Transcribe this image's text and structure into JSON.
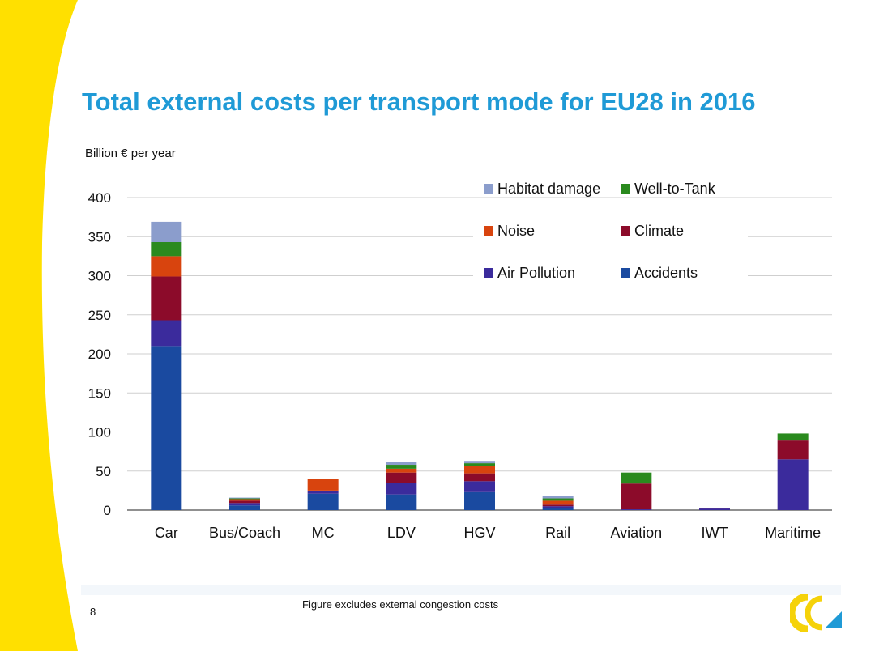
{
  "slide": {
    "title": "Total external costs per transport mode for EU28 in 2016",
    "unit_label": "Billion € per year",
    "footnote": "Figure excludes external congestion costs",
    "page_number": "8"
  },
  "colors": {
    "title": "#1f9ad6",
    "side_band": "#ffe000",
    "footer_line": "#4aa9d8"
  },
  "chart_data": {
    "type": "bar",
    "stacked": true,
    "categories": [
      "Car",
      "Bus/Coach",
      "MC",
      "LDV",
      "HGV",
      "Rail",
      "Aviation",
      "IWT",
      "Maritime"
    ],
    "ylim": [
      0,
      400
    ],
    "yticks": [
      0,
      50,
      100,
      150,
      200,
      250,
      300,
      350,
      400
    ],
    "grid": true,
    "legend_position": "top-right",
    "series": [
      {
        "name": "Accidents",
        "color": "#1a4aa0",
        "values": [
          210,
          6,
          21,
          20,
          23,
          3,
          0,
          0,
          0
        ]
      },
      {
        "name": "Air Pollution",
        "color": "#3b2b9c",
        "values": [
          33,
          3,
          3,
          15,
          14,
          2,
          1,
          2,
          65
        ]
      },
      {
        "name": "Climate",
        "color": "#8c0b2a",
        "values": [
          56,
          3,
          1,
          13,
          10,
          2,
          33,
          1,
          24
        ]
      },
      {
        "name": "Noise",
        "color": "#d8440e",
        "values": [
          26,
          2,
          15,
          5,
          9,
          5,
          0,
          0,
          0
        ]
      },
      {
        "name": "Well-to-Tank",
        "color": "#2a8a1e",
        "values": [
          18,
          1,
          0,
          5,
          4,
          3,
          14,
          0,
          9
        ]
      },
      {
        "name": "Habitat damage",
        "color": "#8b9dcc",
        "values": [
          26,
          1,
          0,
          4,
          3,
          3,
          0,
          0,
          0
        ]
      }
    ],
    "legend_order": [
      "Habitat damage",
      "Well-to-Tank",
      "Noise",
      "Climate",
      "Air Pollution",
      "Accidents"
    ]
  }
}
